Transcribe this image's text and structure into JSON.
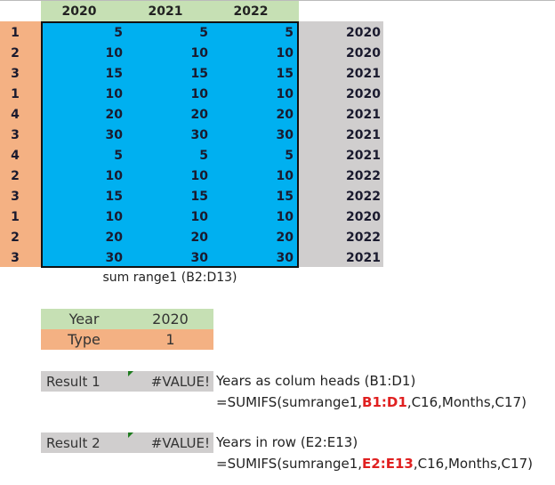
{
  "header_years": [
    "2020",
    "2021",
    "2022"
  ],
  "rows": [
    {
      "type": "1",
      "v": [
        "5",
        "5",
        "5"
      ],
      "year": "2020"
    },
    {
      "type": "2",
      "v": [
        "10",
        "10",
        "10"
      ],
      "year": "2020"
    },
    {
      "type": "3",
      "v": [
        "15",
        "15",
        "15"
      ],
      "year": "2021"
    },
    {
      "type": "1",
      "v": [
        "10",
        "10",
        "10"
      ],
      "year": "2020"
    },
    {
      "type": "4",
      "v": [
        "20",
        "20",
        "20"
      ],
      "year": "2021"
    },
    {
      "type": "3",
      "v": [
        "30",
        "30",
        "30"
      ],
      "year": "2021"
    },
    {
      "type": "4",
      "v": [
        "5",
        "5",
        "5"
      ],
      "year": "2021"
    },
    {
      "type": "2",
      "v": [
        "10",
        "10",
        "10"
      ],
      "year": "2022"
    },
    {
      "type": "3",
      "v": [
        "15",
        "15",
        "15"
      ],
      "year": "2022"
    },
    {
      "type": "1",
      "v": [
        "10",
        "10",
        "10"
      ],
      "year": "2020"
    },
    {
      "type": "2",
      "v": [
        "20",
        "20",
        "20"
      ],
      "year": "2022"
    },
    {
      "type": "3",
      "v": [
        "30",
        "30",
        "30"
      ],
      "year": "2021"
    }
  ],
  "caption": "sum range1 (B2:D13)",
  "criteria": {
    "year_label": "Year",
    "year_value": "2020",
    "type_label": "Type",
    "type_value": "1"
  },
  "results": [
    {
      "label": "Result 1",
      "value": "#VALUE!",
      "note": "Years as colum heads (B1:D1)",
      "formula_pre": "=SUMIFS(sumrange1,",
      "formula_hl": "B1:D1",
      "formula_post": ",C16,Months,C17)"
    },
    {
      "label": "Result 2",
      "value": "#VALUE!",
      "note": "Years in row (E2:E13)",
      "formula_pre": "=SUMIFS(sumrange1,",
      "formula_hl": "E2:E13",
      "formula_post": ",C16,Months,C17)"
    }
  ],
  "colors": {
    "header": "#c6e0b4",
    "type": "#f4b183",
    "sum_range": "#00b0f0",
    "year_col": "#d0cece",
    "highlight": "#e02020"
  }
}
